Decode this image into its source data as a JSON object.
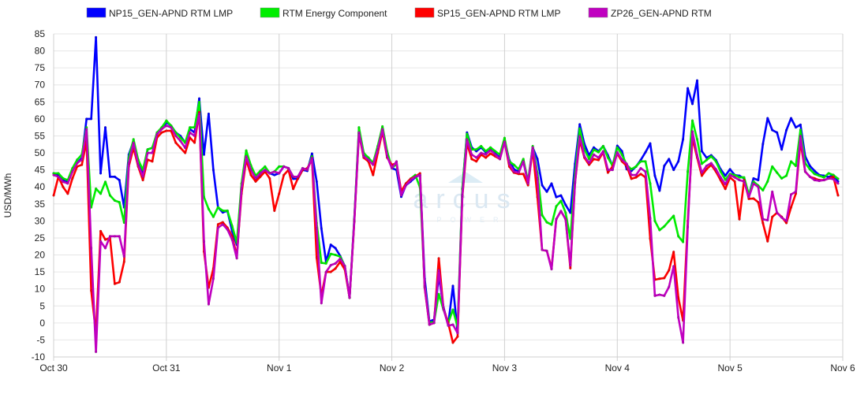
{
  "chart_data": {
    "type": "line",
    "title": "",
    "xlabel": "",
    "ylabel": "USD/MWh",
    "ylim": [
      -10,
      85
    ],
    "y_ticks": [
      -10,
      -5,
      0,
      5,
      10,
      15,
      20,
      25,
      30,
      35,
      40,
      45,
      50,
      55,
      60,
      65,
      70,
      75,
      80,
      85
    ],
    "x_tick_labels": [
      "Oct 30",
      "Oct 31",
      "Nov 1",
      "Nov 2",
      "Nov 3",
      "Nov 4",
      "Nov 5",
      "Nov 6"
    ],
    "x_unit": "hours since Oct 30 00:00",
    "xlim": [
      0,
      168
    ],
    "grid": true,
    "legend_position": "top",
    "watermark": {
      "text": "arcus",
      "subtext": "POWER"
    },
    "series": [
      {
        "name": "NP15_GEN-APND RTM LMP",
        "color": "#0000ff",
        "values": [
          44,
          43.5,
          42,
          41.5,
          45,
          47,
          48.5,
          60,
          60,
          84,
          44,
          57.5,
          43,
          43,
          42,
          34,
          49.5,
          53.5,
          47.5,
          44,
          51,
          51.5,
          55.5,
          57,
          59,
          58,
          56,
          55,
          53,
          57,
          56,
          66,
          49.5,
          61.5,
          45,
          34,
          32.5,
          33,
          27,
          23,
          40,
          50,
          46,
          42,
          44,
          45,
          44,
          43.5,
          44,
          46,
          45.5,
          42.4,
          42.4,
          45,
          44.7,
          49.8,
          41.6,
          27.8,
          18,
          23,
          22,
          19.7,
          16.7,
          7.4,
          30.5,
          57,
          49.8,
          48.6,
          47,
          51.6,
          56.3,
          49.8,
          45.5,
          45,
          37.1,
          40.5,
          41.6,
          42.8,
          43.5,
          13,
          0.4,
          1,
          13.9,
          4.6,
          -0.5,
          10.9,
          -2.8,
          39.4,
          56,
          51.6,
          50.5,
          51.6,
          50.2,
          51,
          49.8,
          48.6,
          53.7,
          47.9,
          45.2,
          44.5,
          47.5,
          41.2,
          51.6,
          48.2,
          40.5,
          38.6,
          41,
          37,
          37.5,
          34.7,
          32.4,
          46.8,
          58.4,
          52.6,
          49.3,
          51.6,
          50.5,
          52,
          49.3,
          46.2,
          52.1,
          50.5,
          45.2,
          44.7,
          46,
          47.9,
          50.2,
          52.8,
          43.3,
          38.9,
          46.2,
          48.2,
          45,
          47.5,
          54,
          69,
          64.4,
          71.3,
          50.5,
          48.6,
          49.3,
          47.9,
          45.2,
          43.3,
          45.2,
          43.5,
          43.3,
          42.5,
          37.5,
          42.5,
          42,
          52.6,
          60.2,
          56.7,
          56,
          51,
          56.7,
          60.2,
          57.5,
          58.3,
          49,
          46.2,
          44.7,
          43.5,
          43.3,
          42.9,
          43.5,
          41.6
        ]
      },
      {
        "name": "RTM Energy Component",
        "color": "#00ee00",
        "values": [
          44,
          44,
          42.5,
          42,
          45.5,
          48,
          49.5,
          57.5,
          34,
          39.5,
          38,
          41.5,
          37.5,
          36,
          35.5,
          29.5,
          48.5,
          54,
          48,
          45,
          51,
          51.5,
          56,
          57.5,
          59.5,
          58,
          56,
          54.5,
          53,
          57.5,
          57.5,
          65,
          37,
          33.5,
          31.2,
          34,
          33,
          33,
          28.5,
          23.6,
          41,
          50.7,
          46.3,
          43.3,
          44.7,
          46,
          44,
          44.5,
          46,
          46,
          45.5,
          43,
          43,
          45.5,
          45,
          49,
          29.4,
          17.7,
          17.5,
          20.3,
          20,
          19.5,
          16.7,
          7.4,
          30.5,
          57.5,
          50,
          48.6,
          47,
          52,
          57.8,
          50.5,
          45.5,
          46.8,
          38,
          41,
          42.4,
          43.5,
          39.8,
          10.9,
          0,
          0.4,
          8.5,
          3.9,
          0,
          3.9,
          -1.2,
          39.4,
          55.6,
          51,
          51,
          52,
          50.5,
          51.6,
          50.5,
          49.5,
          54.4,
          47.5,
          46.5,
          45.2,
          48.2,
          41.6,
          52,
          44,
          31.7,
          29.6,
          28.9,
          34.3,
          35.9,
          32.4,
          24.8,
          43.6,
          57.2,
          51,
          48.2,
          51,
          50.2,
          52,
          48.6,
          46.2,
          51.6,
          49.5,
          46.5,
          45.2,
          46,
          47.5,
          47.5,
          41,
          30,
          27.3,
          28.4,
          30,
          31.5,
          25.5,
          23.8,
          44.5,
          59.5,
          54,
          46.8,
          47.9,
          49,
          47.5,
          44.5,
          42.1,
          43.8,
          43.5,
          42.8,
          42.8,
          37.8,
          41.6,
          40.4,
          39,
          41.6,
          46,
          44.2,
          42.5,
          43.3,
          47.5,
          46.2,
          56.8,
          47,
          45.2,
          43.8,
          43.3,
          42.8,
          44,
          43.5,
          42.4
        ]
      },
      {
        "name": "SP15_GEN-APND RTM LMP",
        "color": "#ff0000",
        "values": [
          37.5,
          43,
          40,
          38,
          42.5,
          46,
          46.5,
          53.5,
          9.5,
          -3,
          27,
          24.5,
          25,
          11.5,
          12,
          18,
          46,
          51.5,
          46,
          42,
          48,
          47.5,
          54.5,
          56,
          56.5,
          56.5,
          53,
          51.5,
          50,
          54.5,
          53,
          62,
          21,
          10.4,
          16,
          29,
          29.6,
          28,
          25.5,
          19.7,
          38,
          48,
          43.5,
          41.6,
          43,
          44.5,
          42.5,
          33,
          38,
          43.5,
          45,
          39.4,
          42.5,
          45,
          45.5,
          48,
          19.2,
          8,
          15,
          15,
          16,
          18,
          15.7,
          7.4,
          29.7,
          55.6,
          48.6,
          47.5,
          43.5,
          50,
          56.3,
          48.6,
          46.5,
          47,
          38.7,
          41,
          42.4,
          43,
          44,
          10.3,
          -0.5,
          0,
          19,
          4.2,
          0,
          -5.8,
          -4,
          37,
          52.8,
          48.2,
          47.5,
          49.5,
          48.6,
          49.8,
          49,
          48.2,
          53.3,
          46,
          44.2,
          43.8,
          43.8,
          40.5,
          51,
          37,
          21.5,
          21.2,
          16.1,
          30.5,
          32.9,
          30.5,
          16.1,
          41.2,
          53.7,
          48.6,
          46.5,
          48.2,
          47.9,
          50.2,
          44.2,
          46,
          49.8,
          47.5,
          46.2,
          42.4,
          42.8,
          43.8,
          42.8,
          24.8,
          12.7,
          13,
          13.2,
          15.5,
          20.9,
          7.4,
          0.7,
          30,
          54.4,
          48.6,
          43.3,
          45.2,
          46.5,
          44.5,
          42,
          39.4,
          42.8,
          41.6,
          30.5,
          42,
          36.5,
          36.6,
          35.5,
          29.4,
          24,
          31.2,
          32.4,
          31.2,
          29.4,
          34,
          38,
          53.3,
          44.5,
          43,
          42.5,
          42,
          42,
          42.5,
          43,
          37.5
        ]
      },
      {
        "name": "ZP26_GEN-APND RTM",
        "color": "#c000c0",
        "values": [
          43.5,
          43,
          41.5,
          41,
          44.5,
          47,
          48,
          57,
          22,
          -8.5,
          24,
          22,
          25.5,
          25.5,
          25.5,
          19.5,
          47,
          53,
          46.5,
          43,
          50,
          50,
          55.5,
          57,
          58,
          57.5,
          55,
          53.5,
          51.5,
          56,
          55,
          61.5,
          24,
          5.5,
          13,
          28,
          29,
          27.5,
          24.5,
          19,
          39.5,
          49,
          45,
          42.5,
          44,
          45,
          44,
          44.5,
          44,
          46,
          45.5,
          43,
          43,
          45.5,
          45,
          48.5,
          27.8,
          5.8,
          15,
          17,
          17.5,
          18.9,
          16.7,
          7.4,
          30,
          56,
          49,
          48,
          46.5,
          51,
          57,
          49,
          45.5,
          47.5,
          37.5,
          40.5,
          42,
          43,
          43.5,
          10.6,
          -0.5,
          0,
          15.5,
          4.2,
          -0.8,
          -0.5,
          -3,
          37.5,
          54,
          49.5,
          48.6,
          50,
          49.5,
          50.8,
          49.5,
          48.2,
          53.3,
          46.8,
          44.5,
          44.2,
          47.5,
          41,
          51.6,
          42.4,
          21.5,
          21.2,
          15.8,
          30.5,
          32.9,
          30.5,
          16.9,
          41.2,
          54.9,
          49,
          47,
          49.5,
          48.6,
          50.5,
          45,
          45,
          50.2,
          48,
          46.8,
          43.5,
          43.5,
          45.5,
          44.5,
          30.8,
          8,
          8.3,
          8,
          10.6,
          16.7,
          1.6,
          -5.8,
          28.2,
          56.3,
          49.3,
          44.2,
          46.2,
          47,
          45.2,
          42.8,
          40.8,
          43.5,
          42.8,
          42,
          41.6,
          37,
          41,
          40,
          30.5,
          30.2,
          38.6,
          32.4,
          31,
          30,
          37.8,
          38.6,
          55,
          44.5,
          43,
          42,
          41.8,
          42,
          42.5,
          42.3,
          41
        ]
      }
    ]
  }
}
